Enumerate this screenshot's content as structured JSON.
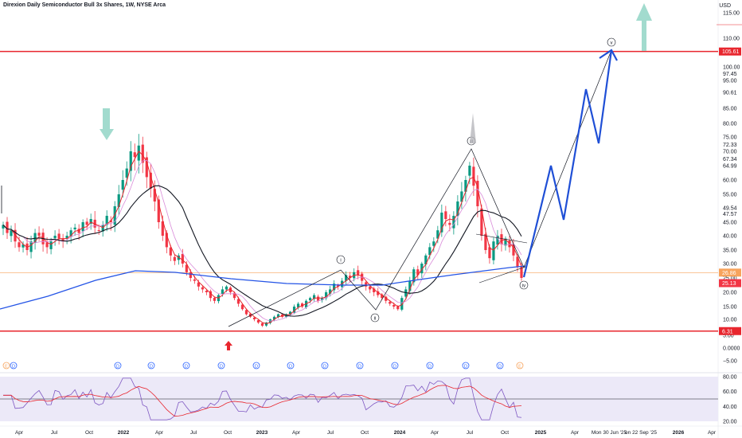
{
  "title": "Direxion Daily Semiconductor Bull 3x Shares, 1W, NYSE Arca",
  "currency": "USD",
  "colors": {
    "up": "#089981",
    "down": "#f23645",
    "ma_fast": "#e8262e",
    "ma_mid": "#d98bd9",
    "ma_slow": "#131722",
    "ma_long": "#2454e6",
    "wave": "#1f4fd6",
    "hline": "#e8262e",
    "orange": "#f7a35c",
    "rsi_band": "#ece9f8",
    "rsi_line": "#7e57c2",
    "rsi_ma": "#e8262e",
    "arrow_teal": "#92d5c6",
    "arrow_red": "#e8262e"
  },
  "chart_data": {
    "type": "candlestick",
    "price_axis_ticks": [
      "115.00",
      "110.00",
      "105.00",
      "100.00",
      "97.45",
      "95.00",
      "90.61",
      "85.00",
      "80.00",
      "75.00",
      "72.33",
      "70.00",
      "67.34",
      "64.99",
      "60.00",
      "55.00",
      "49.54",
      "47.57",
      "45.00",
      "40.00",
      "35.00",
      "30.00",
      "25.00",
      "20.00",
      "15.00",
      "10.00",
      "5.00",
      "0.0000",
      "−5.00"
    ],
    "price_labels": [
      {
        "text": "105.61",
        "value": 105.61,
        "color": "#e8262e"
      },
      {
        "text": "26.86",
        "value": 26.86,
        "color": "#f7a35c"
      },
      {
        "text": "25.13",
        "value": 25.13,
        "color": "#f23645"
      },
      {
        "text": "6.31",
        "value": 6.31,
        "color": "#e8262e"
      }
    ],
    "hlines": [
      105.61,
      6.31
    ],
    "time_ticks": [
      "Apr",
      "Jul",
      "Oct",
      "2022",
      "Apr",
      "Jul",
      "Oct",
      "2023",
      "Apr",
      "Jul",
      "Oct",
      "2024",
      "Apr",
      "Jul",
      "Oct",
      "2025",
      "Apr",
      "Mon 30 Jun '25",
      "on 22 Sep '25",
      "2026",
      "Apr"
    ],
    "wave_labels": [
      "i",
      "ii",
      "iii",
      "iv",
      "v"
    ],
    "candles_close": [
      44,
      41,
      42,
      38,
      36,
      37,
      35,
      38,
      41,
      40,
      37,
      36,
      38,
      40,
      39,
      38,
      40,
      42,
      43,
      41,
      45,
      44,
      46,
      43,
      42,
      44,
      47,
      45,
      50,
      55,
      60,
      64,
      70,
      68,
      72,
      66,
      61,
      57,
      52,
      45,
      40,
      36,
      33,
      31,
      33,
      30,
      27,
      25,
      24,
      22,
      21,
      20,
      18,
      17,
      19,
      21,
      22,
      20,
      18,
      16,
      14,
      12,
      11,
      10,
      9,
      8,
      9,
      10,
      11,
      12,
      11,
      12,
      13,
      15,
      16,
      15,
      17,
      18,
      19,
      17,
      18,
      20,
      21,
      23,
      22,
      24,
      26,
      25,
      27,
      26,
      24,
      22,
      21,
      20,
      19,
      18,
      17,
      16,
      15,
      14,
      18,
      21,
      24,
      28,
      26,
      30,
      33,
      36,
      38,
      42,
      48,
      46,
      44,
      47,
      52,
      56,
      60,
      65,
      58,
      50,
      40,
      35,
      32,
      38,
      40,
      37,
      39,
      36,
      33,
      29,
      25
    ],
    "rsi_ticks": [
      "80.00",
      "60.00",
      "40.00",
      "20.00"
    ],
    "rsi_reference_level": 50
  }
}
